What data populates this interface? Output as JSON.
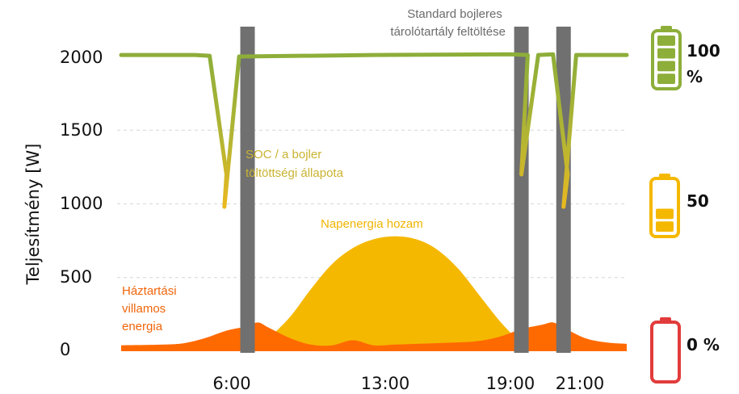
{
  "chart_data": {
    "type": "area",
    "ylabel": "Teljesítmény [W]",
    "xlabel": "",
    "title": "",
    "ylim": [
      0,
      2200
    ],
    "xlim": [
      0,
      24
    ],
    "y_ticks": [
      {
        "value": 2000,
        "label": "2000"
      },
      {
        "value": 1500,
        "label": "1500"
      },
      {
        "value": 1000,
        "label": "1000"
      },
      {
        "value": 500,
        "label": "500"
      },
      {
        "value": 0,
        "label": "0"
      }
    ],
    "x_ticks": [
      {
        "value": 6,
        "label": "6:00"
      },
      {
        "value": 13,
        "label": "13:00"
      },
      {
        "value": 19,
        "label": "19:00"
      },
      {
        "value": 21,
        "label": "21:00"
      }
    ],
    "markers": [
      6,
      19,
      21
    ],
    "series": [
      {
        "name": "Napenergia hozam",
        "kind": "area",
        "color": "#F5B800",
        "x": [
          6.5,
          7,
          8,
          9,
          10,
          11,
          12,
          13,
          14,
          15,
          16,
          17,
          18,
          19
        ],
        "y": [
          50,
          90,
          230,
          420,
          590,
          700,
          760,
          780,
          760,
          690,
          560,
          380,
          200,
          50
        ]
      },
      {
        "name": "Háztartási villamos energia",
        "kind": "area",
        "color": "#FF6A00",
        "x": [
          0,
          2,
          3,
          4,
          5,
          6,
          6.5,
          7,
          8,
          9,
          10,
          11,
          12,
          13,
          14,
          15,
          16,
          17,
          18,
          19,
          20,
          20.5,
          21,
          22,
          23,
          24
        ],
        "y": [
          40,
          45,
          55,
          90,
          140,
          170,
          195,
          160,
          90,
          45,
          40,
          75,
          40,
          45,
          50,
          55,
          60,
          70,
          100,
          150,
          180,
          195,
          160,
          90,
          60,
          50
        ]
      },
      {
        "name": "SOC / a bojler töltöttségi állapota",
        "kind": "line",
        "color_top": "#8DAE39",
        "color_bottom": "#E9B920",
        "x": [
          0,
          3.5,
          4.2,
          5.0,
          4.9,
          5.6,
          12,
          18.5,
          19.3,
          19.0,
          19.8,
          20.5,
          21.2,
          21.0,
          21.6,
          24
        ],
        "y": [
          2010,
          2010,
          2005,
          1200,
          980,
          2000,
          2010,
          2015,
          2010,
          1200,
          2010,
          2015,
          1200,
          980,
          2010,
          2010
        ]
      }
    ],
    "annotations": {
      "standard": [
        "Standard bojleres",
        "tárolótartály feltöltése"
      ],
      "soc": [
        "SOC / a bojler",
        "töltöttségi állapota"
      ],
      "solar": "Napenergia hozam",
      "household": [
        "Háztartási",
        "villamos",
        "energia"
      ]
    },
    "batteries": [
      {
        "label": "100 %",
        "level": 1.0,
        "color": "#8DAE39"
      },
      {
        "label": "50",
        "level": 0.5,
        "color": "#F5B800"
      },
      {
        "label": "0 %",
        "level": 0.0,
        "color": "#E23B3B"
      }
    ]
  }
}
